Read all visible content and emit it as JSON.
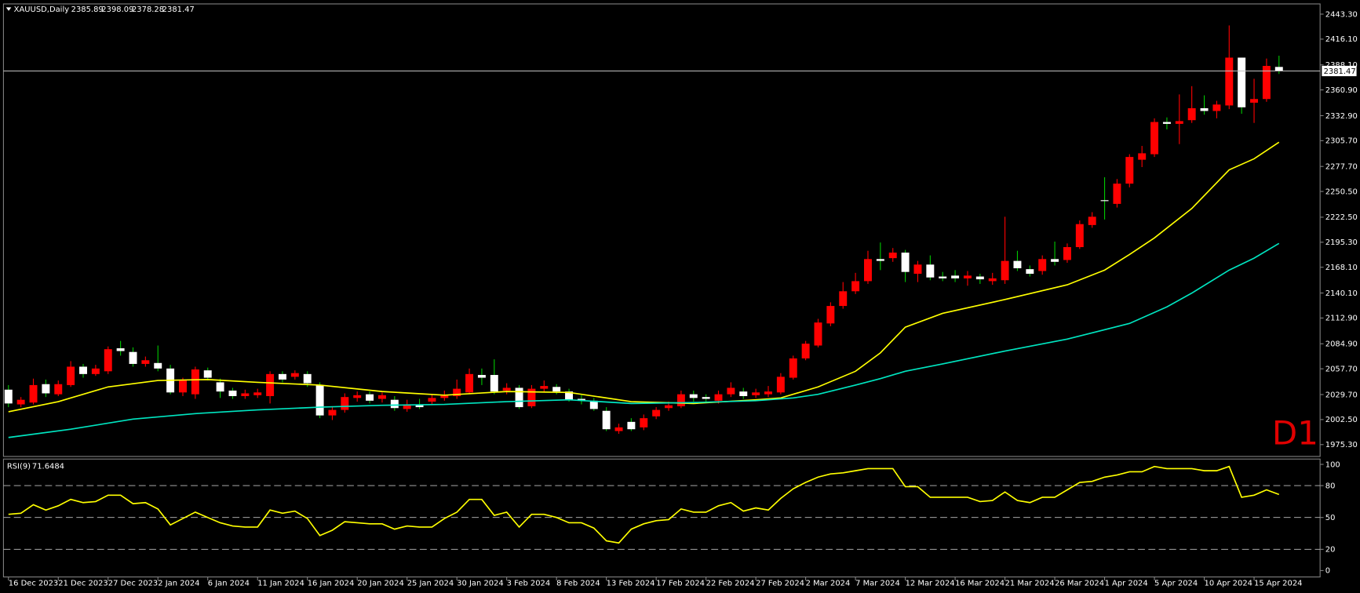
{
  "chart_data": {
    "type": "candlestick",
    "symbol": "XAUUSD,Daily",
    "annotation": "D1",
    "bull_color": "#ff0000",
    "bear_color": "#ffffff",
    "bear_wick_color": "#00c800",
    "price_line_color": "#c0c0c0",
    "x_labels": [
      {
        "value": 0,
        "label": "16 Dec 2023"
      },
      {
        "value": 4,
        "label": "21 Dec 2023"
      },
      {
        "value": 8,
        "label": "27 Dec 2023"
      },
      {
        "value": 12,
        "label": "2 Jan 2024"
      },
      {
        "value": 16,
        "label": "6 Jan 2024"
      },
      {
        "value": 20,
        "label": "11 Jan 2024"
      },
      {
        "value": 24,
        "label": "16 Jan 2024"
      },
      {
        "value": 28,
        "label": "20 Jan 2024"
      },
      {
        "value": 32,
        "label": "25 Jan 2024"
      },
      {
        "value": 36,
        "label": "30 Jan 2024"
      },
      {
        "value": 40,
        "label": "3 Feb 2024"
      },
      {
        "value": 44,
        "label": "8 Feb 2024"
      },
      {
        "value": 48,
        "label": "13 Feb 2024"
      },
      {
        "value": 52,
        "label": "17 Feb 2024"
      },
      {
        "value": 56,
        "label": "22 Feb 2024"
      },
      {
        "value": 60,
        "label": "27 Feb 2024"
      },
      {
        "value": 64,
        "label": "2 Mar 2024"
      },
      {
        "value": 68,
        "label": "7 Mar 2024"
      },
      {
        "value": 72,
        "label": "12 Mar 2024"
      },
      {
        "value": 76,
        "label": "16 Mar 2024"
      },
      {
        "value": 80,
        "label": "21 Mar 2024"
      },
      {
        "value": 84,
        "label": "26 Mar 2024"
      },
      {
        "value": 88,
        "label": "1 Apr 2024"
      },
      {
        "value": 92,
        "label": "5 Apr 2024"
      },
      {
        "value": 96,
        "label": "10 Apr 2024"
      },
      {
        "value": 100,
        "label": "15 Apr 2024"
      }
    ],
    "xlim": [
      -0.4,
      105.3
    ],
    "ylim": [
      1962.4,
      2454.4
    ],
    "yticks": [
      {
        "value": 2443.3,
        "label": "2443.30"
      },
      {
        "value": 2416.1,
        "label": "2416.10"
      },
      {
        "value": 2388.1,
        "label": "2388.10"
      },
      {
        "value": 2360.9,
        "label": "2360.90"
      },
      {
        "value": 2332.9,
        "label": "2332.90"
      },
      {
        "value": 2305.7,
        "label": "2305.70"
      },
      {
        "value": 2277.7,
        "label": "2277.70"
      },
      {
        "value": 2250.5,
        "label": "2250.50"
      },
      {
        "value": 2222.5,
        "label": "2222.50"
      },
      {
        "value": 2195.3,
        "label": "2195.30"
      },
      {
        "value": 2168.1,
        "label": "2168.10"
      },
      {
        "value": 2140.1,
        "label": "2140.10"
      },
      {
        "value": 2112.9,
        "label": "2112.90"
      },
      {
        "value": 2084.9,
        "label": "2084.90"
      },
      {
        "value": 2057.7,
        "label": "2057.70"
      },
      {
        "value": 2029.7,
        "label": "2029.70"
      },
      {
        "value": 2002.5,
        "label": "2002.50"
      },
      {
        "value": 1975.3,
        "label": "1975.30"
      }
    ],
    "open": [
      2035,
      2019,
      2021,
      2041,
      2030,
      2040,
      2060,
      2052,
      2055,
      2080,
      2076,
      2063,
      2064,
      2058,
      2032,
      2030,
      2056,
      2043,
      2034,
      2028,
      2029,
      2028,
      2052,
      2049,
      2052,
      2040,
      2007,
      2013,
      2026,
      2030,
      2025,
      2024,
      2014,
      2019,
      2022,
      2026,
      2028,
      2032,
      2051,
      2051,
      2034,
      2037,
      2017,
      2036,
      2038,
      2033,
      2025,
      2023,
      2012,
      1990,
      2000,
      1994,
      2006,
      2015,
      2017,
      2030,
      2027,
      2023,
      2030,
      2033,
      2029,
      2030,
      2032,
      2048,
      2069,
      2083,
      2107,
      2126,
      2142,
      2153,
      2177,
      2178,
      2184,
      2161,
      2171,
      2158,
      2159,
      2156,
      2158,
      2153,
      2154,
      2175,
      2166,
      2164,
      2177,
      2176,
      2190,
      2214,
      2241,
      2237,
      2259,
      2285,
      2291,
      2326,
      2324,
      2328,
      2341,
      2338,
      2344,
      2396,
      2347,
      2351,
      2385.89
    ],
    "high": [
      2040,
      2027,
      2047,
      2046,
      2045,
      2066,
      2063,
      2062,
      2082,
      2088,
      2081,
      2071,
      2083,
      2062,
      2048,
      2060,
      2059,
      2047,
      2037,
      2035,
      2036,
      2055,
      2055,
      2056,
      2055,
      2043,
      2017,
      2031,
      2033,
      2033,
      2032,
      2028,
      2024,
      2025,
      2030,
      2034,
      2046,
      2058,
      2058,
      2068,
      2042,
      2040,
      2040,
      2045,
      2041,
      2036,
      2029,
      2026,
      2016,
      1998,
      2004,
      2008,
      2016,
      2022,
      2034,
      2034,
      2030,
      2034,
      2043,
      2037,
      2036,
      2039,
      2053,
      2072,
      2088,
      2112,
      2130,
      2152,
      2162,
      2186,
      2195,
      2189,
      2187,
      2175,
      2181,
      2163,
      2165,
      2164,
      2161,
      2162,
      2223,
      2186,
      2170,
      2181,
      2196,
      2194,
      2219,
      2228,
      2266,
      2264,
      2291,
      2300,
      2330,
      2331,
      2356,
      2365,
      2355,
      2349,
      2431,
      2396,
      2373,
      2395,
      2398.09
    ],
    "low": [
      2016,
      2016,
      2019,
      2027,
      2028,
      2038,
      2048,
      2050,
      2052,
      2072,
      2060,
      2060,
      2055,
      2030,
      2028,
      2025,
      2045,
      2026,
      2025,
      2025,
      2026,
      2020,
      2043,
      2046,
      2038,
      2004,
      2002,
      2010,
      2022,
      2020,
      2021,
      2012,
      2011,
      2014,
      2019,
      2023,
      2025,
      2030,
      2040,
      2030,
      2030,
      2014,
      2015,
      2033,
      2030,
      2022,
      2019,
      2012,
      1990,
      1987,
      1990,
      1991,
      2003,
      2012,
      2015,
      2022,
      2022,
      2020,
      2027,
      2025,
      2026,
      2027,
      2030,
      2046,
      2067,
      2081,
      2104,
      2123,
      2139,
      2150,
      2165,
      2174,
      2152,
      2152,
      2154,
      2153,
      2152,
      2148,
      2150,
      2149,
      2150,
      2164,
      2158,
      2160,
      2170,
      2173,
      2188,
      2211,
      2220,
      2233,
      2255,
      2277,
      2288,
      2318,
      2302,
      2325,
      2334,
      2330,
      2340,
      2335,
      2325,
      2348,
      2378.28
    ],
    "close": [
      2020,
      2024,
      2040,
      2031,
      2041,
      2060,
      2052,
      2058,
      2079,
      2077,
      2063,
      2067,
      2058,
      2032,
      2045,
      2057,
      2048,
      2033,
      2028,
      2031,
      2032,
      2052,
      2046,
      2053,
      2042,
      2007,
      2013,
      2027,
      2029,
      2023,
      2029,
      2015,
      2018,
      2016,
      2026,
      2029,
      2036,
      2052,
      2048,
      2033,
      2037,
      2016,
      2036,
      2039,
      2033,
      2024,
      2023,
      2014,
      1992,
      1994,
      1992,
      2004,
      2013,
      2018,
      2030,
      2026,
      2025,
      2030,
      2037,
      2028,
      2032,
      2033,
      2049,
      2069,
      2085,
      2108,
      2126,
      2142,
      2153,
      2177,
      2175,
      2184,
      2163,
      2171,
      2157,
      2156,
      2156,
      2159,
      2155,
      2156,
      2175,
      2167,
      2161,
      2177,
      2174,
      2190,
      2215,
      2223,
      2240,
      2259,
      2288,
      2292,
      2326,
      2324,
      2327,
      2341,
      2338,
      2345,
      2396,
      2342,
      2351,
      2387,
      2381.47
    ],
    "series": [
      {
        "color": "#ffff00",
        "x": [
          0,
          4,
          8,
          12,
          16,
          20,
          25,
          30,
          35,
          40,
          45,
          50,
          55,
          60,
          62,
          65,
          68,
          70,
          72,
          75,
          80,
          85,
          88,
          90,
          92,
          95,
          98,
          100,
          102
        ],
        "values": [
          2011,
          2022,
          2038,
          2045,
          2046,
          2043,
          2040,
          2033,
          2029,
          2033,
          2032,
          2022,
          2020,
          2024,
          2026,
          2038,
          2055,
          2075,
          2103,
          2118,
          2133,
          2149,
          2165,
          2182,
          2200,
          2232,
          2274,
          2286,
          2304
        ]
      },
      {
        "color": "#00e5c0",
        "x": [
          0,
          5,
          10,
          15,
          20,
          25,
          30,
          35,
          40,
          45,
          50,
          55,
          60,
          63,
          65,
          68,
          70,
          72,
          75,
          80,
          85,
          90,
          93,
          95,
          98,
          100,
          102
        ],
        "values": [
          1983,
          1992,
          2003,
          2009,
          2013,
          2016,
          2018,
          2019,
          2022,
          2024,
          2020,
          2021,
          2023,
          2026,
          2030,
          2040,
          2047,
          2055,
          2063,
          2077,
          2090,
          2107,
          2125,
          2140,
          2165,
          2178,
          2194
        ]
      }
    ],
    "rsi": {
      "label": "RSI(9)",
      "color": "#ffff00",
      "ylim": [
        -6,
        105
      ],
      "yticks": [
        100,
        80,
        50,
        20,
        0
      ],
      "levels": [
        80,
        50,
        20
      ],
      "values": [
        53,
        54,
        62,
        57,
        61,
        67,
        64,
        65,
        71,
        71,
        63,
        64,
        58,
        43,
        49,
        55,
        50,
        45,
        42,
        41,
        41,
        57,
        54,
        56,
        49,
        33,
        38,
        46,
        45,
        44,
        44,
        39,
        42,
        41,
        41,
        49,
        55,
        67,
        67,
        52,
        55,
        41,
        53,
        53,
        50,
        45,
        45,
        40,
        28,
        26,
        39,
        44,
        47,
        48,
        58,
        55,
        55,
        61,
        64,
        56,
        59,
        57,
        68,
        77,
        83,
        88,
        91,
        92,
        94,
        96,
        96,
        96,
        79,
        79,
        69,
        69,
        69,
        69,
        65,
        66,
        74,
        66,
        64,
        69,
        69,
        76,
        83,
        84,
        88,
        90,
        93,
        93,
        98,
        96,
        96,
        96,
        94,
        94,
        98,
        69,
        71,
        76,
        71.6484
      ]
    }
  }
}
